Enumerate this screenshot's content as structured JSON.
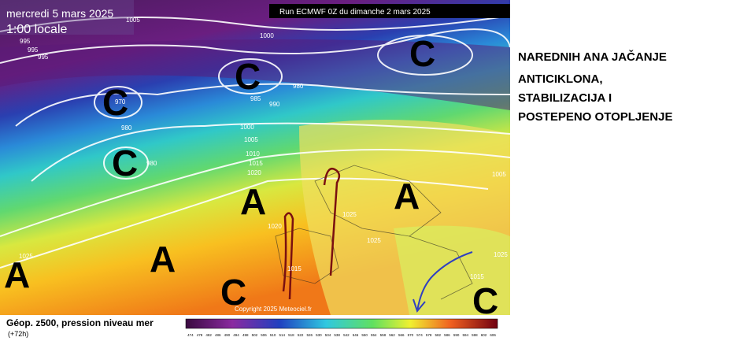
{
  "map": {
    "date": "mercredi 5 mars 2025",
    "time": "1:00 locale",
    "run": "Run ECMWF 0Z du dimanche 2 mars 2025",
    "copyright": "Copyright 2025 Meteociel.fr",
    "highs": [
      "A",
      "A",
      "A",
      "A"
    ],
    "lows": [
      "C",
      "C",
      "C",
      "C",
      "C",
      "C"
    ],
    "isobar_labels": [
      "1005",
      "995",
      "995",
      "995",
      "1000",
      "985",
      "980",
      "990",
      "970",
      "980",
      "980",
      "1000",
      "1005",
      "1010",
      "1015",
      "1020",
      "1025",
      "1025",
      "1025",
      "1015",
      "1020",
      "1005",
      "1025",
      "1015"
    ]
  },
  "caption": {
    "line1": "Géop. z500, pression niveau mer",
    "line2": "(+72h)"
  },
  "scale_labels": [
    "474",
    "478",
    "482",
    "486",
    "490",
    "494",
    "498",
    "502",
    "506",
    "510",
    "514",
    "518",
    "522",
    "526",
    "530",
    "534",
    "538",
    "542",
    "546",
    "550",
    "554",
    "558",
    "562",
    "566",
    "570",
    "574",
    "578",
    "582",
    "586",
    "590",
    "594",
    "598",
    "602",
    "606"
  ],
  "comment": [
    "NAREDNIH ANA JAČANJE",
    "ANTICIKLONA,",
    "STABILIZACIJA I",
    "POSTEPENO OTOPLJENJE"
  ]
}
